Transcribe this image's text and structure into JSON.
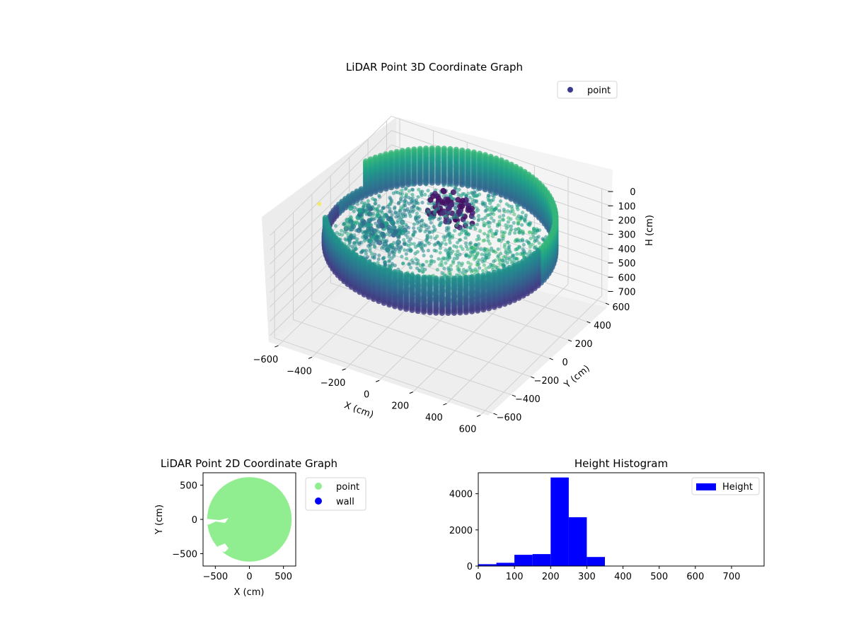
{
  "chart_data": [
    {
      "type": "scatter3d",
      "title": "LiDAR Point 3D Coordinate Graph",
      "xlabel": "X (cm)",
      "ylabel": "Y (cm)",
      "zlabel": "H (cm)",
      "x_ticks": [
        "−600",
        "−400",
        "−200",
        "0",
        "200",
        "400",
        "600"
      ],
      "y_ticks": [
        "600",
        "400",
        "200",
        "0",
        "−200",
        "−400",
        "−600"
      ],
      "z_ticks": [
        "0",
        "100",
        "200",
        "300",
        "400",
        "500",
        "600",
        "700"
      ],
      "xlim": [
        -650,
        650
      ],
      "ylim": [
        -650,
        650
      ],
      "zlim": [
        0,
        750
      ],
      "z_inverted": true,
      "legend": {
        "placement": "upper-right",
        "entries": [
          {
            "label": "point",
            "color": "#3b3a8c"
          }
        ]
      },
      "colormap": "viridis",
      "structure": {
        "ring_wall": {
          "radius": 600,
          "h_top": 0,
          "h_bottom": 250
        },
        "floor_height_range": [
          200,
          300
        ],
        "dark_cluster": {
          "x": -100,
          "y": 300,
          "h_range": [
            100,
            300
          ]
        }
      }
    },
    {
      "type": "scatter",
      "title": "LiDAR Point 2D Coordinate Graph",
      "xlabel": "X (cm)",
      "ylabel": "Y (cm)",
      "x_ticks": [
        "−500",
        "0",
        "500"
      ],
      "y_ticks": [
        "500",
        "0",
        "−500"
      ],
      "xlim": [
        -680,
        680
      ],
      "ylim": [
        -680,
        680
      ],
      "legend": {
        "placement": "outside-right",
        "entries": [
          {
            "label": "point",
            "color": "#90ee90"
          },
          {
            "label": "wall",
            "color": "#0000ff"
          }
        ]
      },
      "point_extent": {
        "shape": "disk",
        "center": [
          0,
          0
        ],
        "radius": 620
      }
    },
    {
      "type": "bar",
      "title": "Height Histogram",
      "x_ticks": [
        "0",
        "100",
        "200",
        "300",
        "400",
        "500",
        "600",
        "700"
      ],
      "y_ticks": [
        "0",
        "2000",
        "4000"
      ],
      "xlim": [
        0,
        790
      ],
      "ylim": [
        0,
        5160
      ],
      "legend": {
        "placement": "upper-right",
        "entries": [
          {
            "label": "Height",
            "color": "#0000ff"
          }
        ]
      },
      "bin_width": 50,
      "bins": [
        {
          "start": 0,
          "end": 50,
          "count": 100
        },
        {
          "start": 50,
          "end": 100,
          "count": 180
        },
        {
          "start": 100,
          "end": 150,
          "count": 620
        },
        {
          "start": 150,
          "end": 200,
          "count": 660
        },
        {
          "start": 200,
          "end": 250,
          "count": 4900
        },
        {
          "start": 250,
          "end": 300,
          "count": 2700
        },
        {
          "start": 300,
          "end": 350,
          "count": 500
        }
      ]
    }
  ]
}
